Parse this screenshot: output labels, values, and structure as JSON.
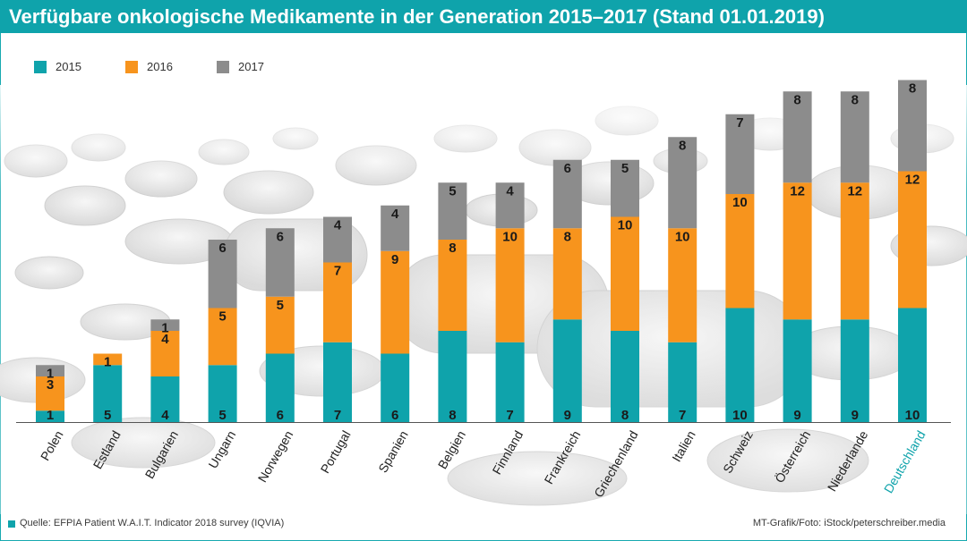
{
  "header": {
    "title": "Verfügbare onkologische Medikamente in der Generation 2015–2017 (Stand 01.01.2019)"
  },
  "colors": {
    "s2015": "#0fa3ab",
    "s2016": "#f7941d",
    "s2017": "#8c8c8c",
    "accent": "#0fa3ab"
  },
  "footer": {
    "source": "Quelle: EFPIA Patient W.A.I.T. Indicator 2018 survey (IQVIA)",
    "credit": "MT-Grafik/Foto: iStock/peterschreiber.media"
  },
  "chart_data": {
    "type": "bar",
    "stacked": true,
    "title": "",
    "xlabel": "",
    "ylabel": "",
    "legend_position": "top-left",
    "categories": [
      "Polen",
      "Estland",
      "Bulgarien",
      "Ungarn",
      "Norwegen",
      "Portugal",
      "Spanien",
      "Belgien",
      "Finnland",
      "Frankreich",
      "Griechenland",
      "Italien",
      "Schweiz",
      "Österreich",
      "Niederlande",
      "Deutschland"
    ],
    "highlight_category": "Deutschland",
    "series": [
      {
        "name": "2015",
        "values": [
          1,
          5,
          4,
          5,
          6,
          7,
          6,
          8,
          7,
          9,
          8,
          7,
          10,
          9,
          9,
          10
        ]
      },
      {
        "name": "2016",
        "values": [
          3,
          1,
          4,
          5,
          5,
          7,
          9,
          8,
          10,
          8,
          10,
          10,
          10,
          12,
          12,
          12
        ]
      },
      {
        "name": "2017",
        "values": [
          1,
          0,
          1,
          6,
          6,
          4,
          4,
          5,
          4,
          6,
          5,
          8,
          7,
          8,
          8,
          8
        ]
      }
    ]
  }
}
